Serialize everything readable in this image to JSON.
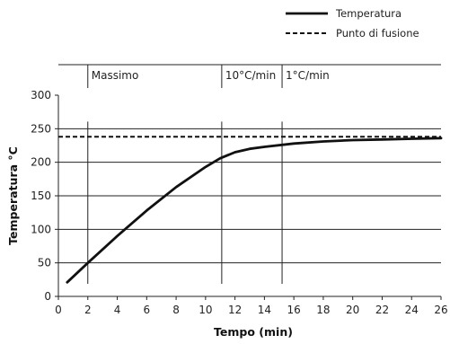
{
  "chart_data": {
    "type": "line",
    "xlabel": "Tempo (min)",
    "ylabel": "Temperatura °C",
    "xlim": [
      0,
      26
    ],
    "ylim": [
      0,
      300
    ],
    "xticks": [
      0,
      2,
      4,
      6,
      8,
      10,
      12,
      14,
      16,
      18,
      20,
      22,
      24,
      26
    ],
    "yticks": [
      0,
      50,
      100,
      150,
      200,
      250,
      300
    ],
    "grid_y": [
      50,
      100,
      150,
      200,
      250
    ],
    "legend_position": "top-right",
    "series": [
      {
        "name": "Temperatura",
        "style": "solid",
        "color": "#111111",
        "x": [
          0.6,
          2,
          4,
          6,
          8,
          10,
          11,
          12,
          13,
          14,
          16,
          18,
          20,
          22,
          24,
          26
        ],
        "y": [
          21,
          50,
          90,
          128,
          163,
          193,
          206,
          215,
          220,
          223,
          228,
          231,
          233,
          234,
          235,
          236
        ]
      },
      {
        "name": "Punto di fusione",
        "style": "dashed",
        "color": "#111111",
        "x": [
          0,
          26
        ],
        "y": [
          238,
          238
        ]
      }
    ],
    "markers": [
      {
        "label": "Massimo",
        "x": 2
      },
      {
        "label": "10°C/min",
        "x": 11.1
      },
      {
        "label": "1°C/min",
        "x": 15.2
      }
    ]
  }
}
